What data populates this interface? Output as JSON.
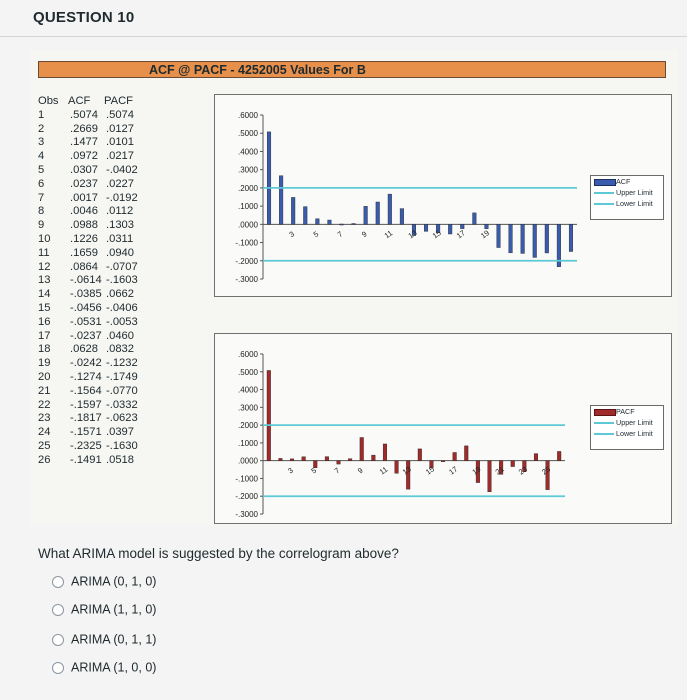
{
  "question_title": "QUESTION 10",
  "chart_title": "ACF @ PACF - 4252005 Values For B",
  "table": {
    "headers": [
      "Obs",
      "ACF",
      "PACF"
    ],
    "rows": [
      [
        "1",
        ".5074",
        ".5074"
      ],
      [
        "2",
        ".2669",
        ".0127"
      ],
      [
        "3",
        ".1477",
        ".0101"
      ],
      [
        "4",
        ".0972",
        ".0217"
      ],
      [
        "5",
        ".0307",
        "-.0402"
      ],
      [
        "6",
        ".0237",
        ".0227"
      ],
      [
        "7",
        ".0017",
        "-.0192"
      ],
      [
        "8",
        ".0046",
        ".0112"
      ],
      [
        "9",
        ".0988",
        ".1303"
      ],
      [
        "10",
        ".1226",
        ".0311"
      ],
      [
        "11",
        ".1659",
        ".0940"
      ],
      [
        "12",
        ".0864",
        "-.0707"
      ],
      [
        "13",
        "-.0614",
        "-.1603"
      ],
      [
        "14",
        "-.0385",
        ".0662"
      ],
      [
        "15",
        "-.0456",
        "-.0406"
      ],
      [
        "16",
        "-.0531",
        "-.0053"
      ],
      [
        "17",
        "-.0237",
        ".0460"
      ],
      [
        "18",
        ".0628",
        ".0832"
      ],
      [
        "19",
        "-.0242",
        "-.1232"
      ],
      [
        "20",
        "-.1274",
        "-.1749"
      ],
      [
        "21",
        "-.1564",
        "-.0770"
      ],
      [
        "22",
        "-.1597",
        "-.0332"
      ],
      [
        "23",
        "-.1817",
        "-.0623"
      ],
      [
        "24",
        "-.1571",
        ".0397"
      ],
      [
        "25",
        "-.2325",
        "-.1630"
      ],
      [
        "26",
        "-.1491",
        ".0518"
      ]
    ]
  },
  "chart_data": [
    {
      "type": "bar",
      "series": [
        {
          "name": "ACF",
          "values": [
            0.5074,
            0.2669,
            0.1477,
            0.0972,
            0.0307,
            0.0237,
            0.0017,
            0.0046,
            0.0988,
            0.1226,
            0.1659,
            0.0864,
            -0.0614,
            -0.0385,
            -0.0456,
            -0.0531,
            -0.0237,
            0.0628,
            -0.0242,
            -0.1274,
            -0.1564,
            -0.1597,
            -0.1817,
            -0.1571,
            -0.2325,
            -0.1491
          ]
        },
        {
          "name": "Upper Limit",
          "constant": 0.2
        },
        {
          "name": "Lower Limit",
          "constant": -0.2
        }
      ],
      "x_tick_labels": [
        "3",
        "5",
        "7",
        "9",
        "11",
        "13",
        "15",
        "17",
        "19"
      ],
      "y_tick_labels": [
        ".6000",
        ".5000",
        ".4000",
        ".3000",
        ".2000",
        ".1000",
        ".0000",
        "-.1000",
        "-.2000",
        "-.3000"
      ],
      "ylim": [
        -0.3,
        0.6
      ],
      "legend_position": "right",
      "colors": {
        "bar": "#3a5cae",
        "limits": "#5ec9d6"
      }
    },
    {
      "type": "bar",
      "series": [
        {
          "name": "PACF",
          "values": [
            0.5074,
            0.0127,
            0.0101,
            0.0217,
            -0.0402,
            0.0227,
            -0.0192,
            0.0112,
            0.1303,
            0.0311,
            0.094,
            -0.0707,
            -0.1603,
            0.0662,
            -0.0406,
            -0.0053,
            0.046,
            0.0832,
            -0.1232,
            -0.1749,
            -0.077,
            -0.0332,
            -0.0623,
            0.0397,
            -0.163,
            0.0518
          ]
        },
        {
          "name": "Upper Limit",
          "constant": 0.2
        },
        {
          "name": "Lower Limit",
          "constant": -0.2
        }
      ],
      "x_tick_labels": [
        "3",
        "5",
        "7",
        "9",
        "11",
        "13",
        "15",
        "17",
        "19",
        "21",
        "23",
        "25"
      ],
      "y_tick_labels": [
        ".6000",
        ".5000",
        ".4000",
        ".3000",
        ".2000",
        ".1000",
        ".0000",
        "-.1000",
        "-.2000",
        "-.3000"
      ],
      "ylim": [
        -0.3,
        0.6
      ],
      "legend_position": "right",
      "colors": {
        "bar": "#a12a2a",
        "limits": "#5ec9d6"
      }
    }
  ],
  "question": "What ARIMA model is suggested by the correlogram above?",
  "options": [
    "ARIMA (0, 1, 0)",
    "ARIMA (1, 1, 0)",
    "ARIMA (0, 1, 1)",
    "ARIMA (1, 0, 0)"
  ]
}
